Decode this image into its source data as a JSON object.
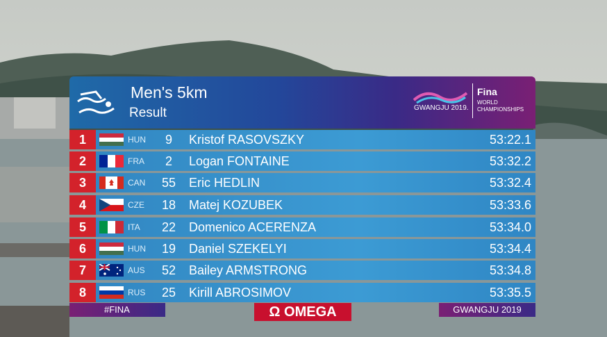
{
  "header": {
    "title": "Men's 5km",
    "subtitle": "Result",
    "logo_city": "GWANGJU 2019.",
    "logo_fina": "Fina",
    "logo_line1": "WORLD",
    "logo_line2": "CHAMPIONSHIPS"
  },
  "rows": [
    {
      "rank": "1",
      "country": "HUN",
      "bib": "9",
      "name": "Kristof RASOVSZKY",
      "time": "53:22.1"
    },
    {
      "rank": "2",
      "country": "FRA",
      "bib": "2",
      "name": "Logan FONTAINE",
      "time": "53:32.2"
    },
    {
      "rank": "3",
      "country": "CAN",
      "bib": "55",
      "name": "Eric HEDLIN",
      "time": "53:32.4"
    },
    {
      "rank": "4",
      "country": "CZE",
      "bib": "18",
      "name": "Matej KOZUBEK",
      "time": "53:33.6"
    },
    {
      "rank": "5",
      "country": "ITA",
      "bib": "22",
      "name": "Domenico ACERENZA",
      "time": "53:34.0"
    },
    {
      "rank": "6",
      "country": "HUN",
      "bib": "19",
      "name": "Daniel SZEKELYI",
      "time": "53:34.4"
    },
    {
      "rank": "7",
      "country": "AUS",
      "bib": "52",
      "name": "Bailey ARMSTRONG",
      "time": "53:34.8"
    },
    {
      "rank": "8",
      "country": "RUS",
      "bib": "25",
      "name": "Kirill ABROSIMOV",
      "time": "53:35.5"
    }
  ],
  "footer": {
    "hashtag": "#FINA",
    "omega_symbol": "Ω",
    "sponsor": "OMEGA",
    "event": "GWANGJU 2019"
  }
}
